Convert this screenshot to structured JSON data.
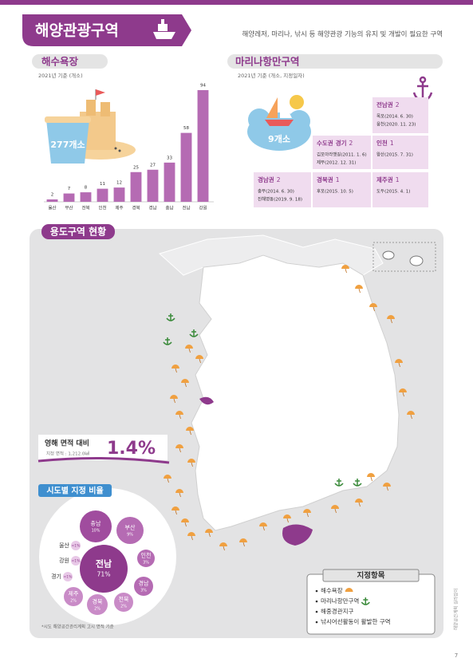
{
  "header": {
    "title": "해양관광구역",
    "description": "해양레저, 마리나, 낚시 등 해양관광 기능의 유지 및 개발이 필요한 구역"
  },
  "beach": {
    "title": "해수욕장",
    "note": "2021년 기준 (개소)",
    "total": "277개소"
  },
  "chart_data": {
    "type": "bar",
    "categories": [
      "울산",
      "부산",
      "전북",
      "인천",
      "제주",
      "경북",
      "경남",
      "충남",
      "전남",
      "강원"
    ],
    "values": [
      2,
      7,
      8,
      11,
      12,
      25,
      27,
      33,
      58,
      94
    ],
    "color": "#b56bb3"
  },
  "marina": {
    "title": "마리나항만구역",
    "note": "2021년 기준 (개소, 지정일자)",
    "total": "9개소",
    "regions": [
      {
        "name": "전남권",
        "count": 2,
        "sites": [
          "목포(2014. 6. 30)",
          "웅천(2020. 11. 23)"
        ]
      },
      {
        "group": "수도권",
        "name": "경기",
        "count": 2,
        "sites": [
          "김포아라뱃길(2011. 1. 6)",
          "제부(2012. 12. 31)"
        ]
      },
      {
        "name": "인천",
        "count": 1,
        "sites": [
          "왕산(2015. 7. 31)"
        ]
      },
      {
        "name": "경남권",
        "count": 2,
        "sites": [
          "충무(2014. 6. 30)",
          "진해명동(2019. 9. 18)"
        ]
      },
      {
        "name": "경북권",
        "count": 1,
        "sites": [
          "후포(2015. 10. 5)"
        ]
      },
      {
        "name": "제주권",
        "count": 1,
        "sites": [
          "도두(2015. 4. 1)"
        ]
      }
    ]
  },
  "map": {
    "title": "용도구역 현황",
    "ratio": {
      "label": "영해 면적 대비",
      "area": "지정 면적 : 1,212.0㎢",
      "value": "1.4%"
    },
    "legend": {
      "title": "지정항목",
      "items": [
        "해수욕장",
        "마리나항만구역",
        "해중경관지구",
        "낚시어선활동이 활발한 구역"
      ]
    }
  },
  "sido_share": {
    "title": "시도별 지정 비율",
    "note": "*시도 해양공간관리계획 고시 면적 기준",
    "items": [
      {
        "region": "충남",
        "share": "10%"
      },
      {
        "region": "부산",
        "share": "9%"
      },
      {
        "region": "전남",
        "share": "71%"
      },
      {
        "region": "인천",
        "share": "3%"
      },
      {
        "region": "경남",
        "share": "3%"
      },
      {
        "region": "전북",
        "share": "2%"
      },
      {
        "region": "경북",
        "share": "2%"
      },
      {
        "region": "제주",
        "share": "2%"
      },
      {
        "region": "울산",
        "share": "<1%"
      },
      {
        "region": "강원",
        "share": "<1%"
      },
      {
        "region": "경기",
        "share": "<1%"
      }
    ]
  },
  "footer": {
    "side": "해양공간계획 길라잡이",
    "page": "7"
  }
}
